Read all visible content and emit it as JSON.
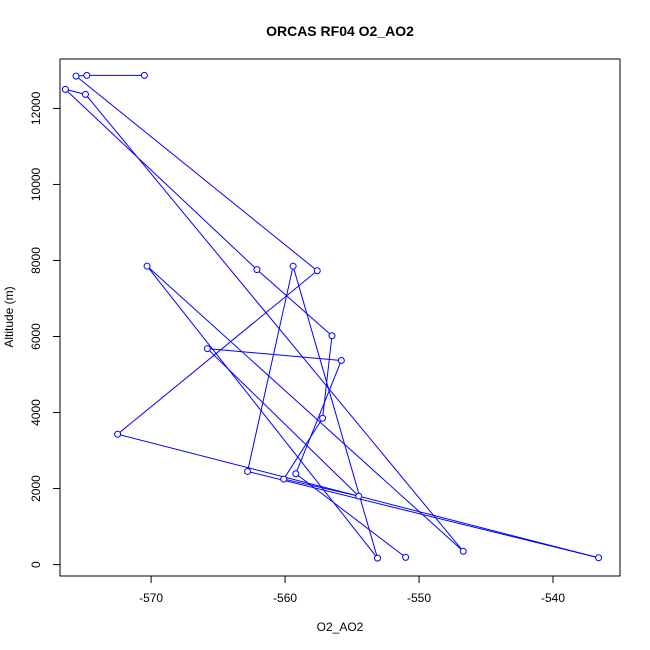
{
  "chart_data": {
    "type": "line",
    "title": "ORCAS RF04 O2_AO2",
    "xlabel": "O2_AO2",
    "ylabel": "Altitude (m)",
    "xlim": [
      -576.8,
      -535.0
    ],
    "ylim": [
      -300,
      13300
    ],
    "x_ticks": [
      -570,
      -560,
      -550,
      -540
    ],
    "x_tick_labels": [
      "-570",
      "-560",
      "-550",
      "-540"
    ],
    "y_ticks": [
      0,
      2000,
      4000,
      6000,
      8000,
      10000,
      12000
    ],
    "y_tick_labels": [
      "0",
      "2000",
      "4000",
      "6000",
      "8000",
      "10000",
      "12000"
    ],
    "grid": false,
    "legend": "none",
    "series": [
      {
        "color": "#0000ff",
        "marker": "open-circle",
        "line": true,
        "points": [
          {
            "x": -570.5,
            "y": 12870
          },
          {
            "x": -574.8,
            "y": 12870
          },
          {
            "x": -575.6,
            "y": 12850
          },
          {
            "x": -557.6,
            "y": 7730
          },
          {
            "x": -572.5,
            "y": 3430
          },
          {
            "x": -536.6,
            "y": 180
          },
          {
            "x": -562.8,
            "y": 2450
          },
          {
            "x": -559.4,
            "y": 7850
          },
          {
            "x": -553.1,
            "y": 170
          },
          {
            "x": -570.3,
            "y": 7850
          },
          {
            "x": -546.7,
            "y": 350
          },
          {
            "x": -574.9,
            "y": 12370
          },
          {
            "x": -576.4,
            "y": 12500
          },
          {
            "x": -562.1,
            "y": 7760
          },
          {
            "x": -556.5,
            "y": 6020
          },
          {
            "x": -557.2,
            "y": 3850
          },
          {
            "x": -560.1,
            "y": 2250
          },
          {
            "x": -554.5,
            "y": 1800
          },
          {
            "x": -565.8,
            "y": 5680
          },
          {
            "x": -555.8,
            "y": 5370
          },
          {
            "x": -559.2,
            "y": 2390
          },
          {
            "x": -551.0,
            "y": 190
          }
        ]
      }
    ]
  }
}
